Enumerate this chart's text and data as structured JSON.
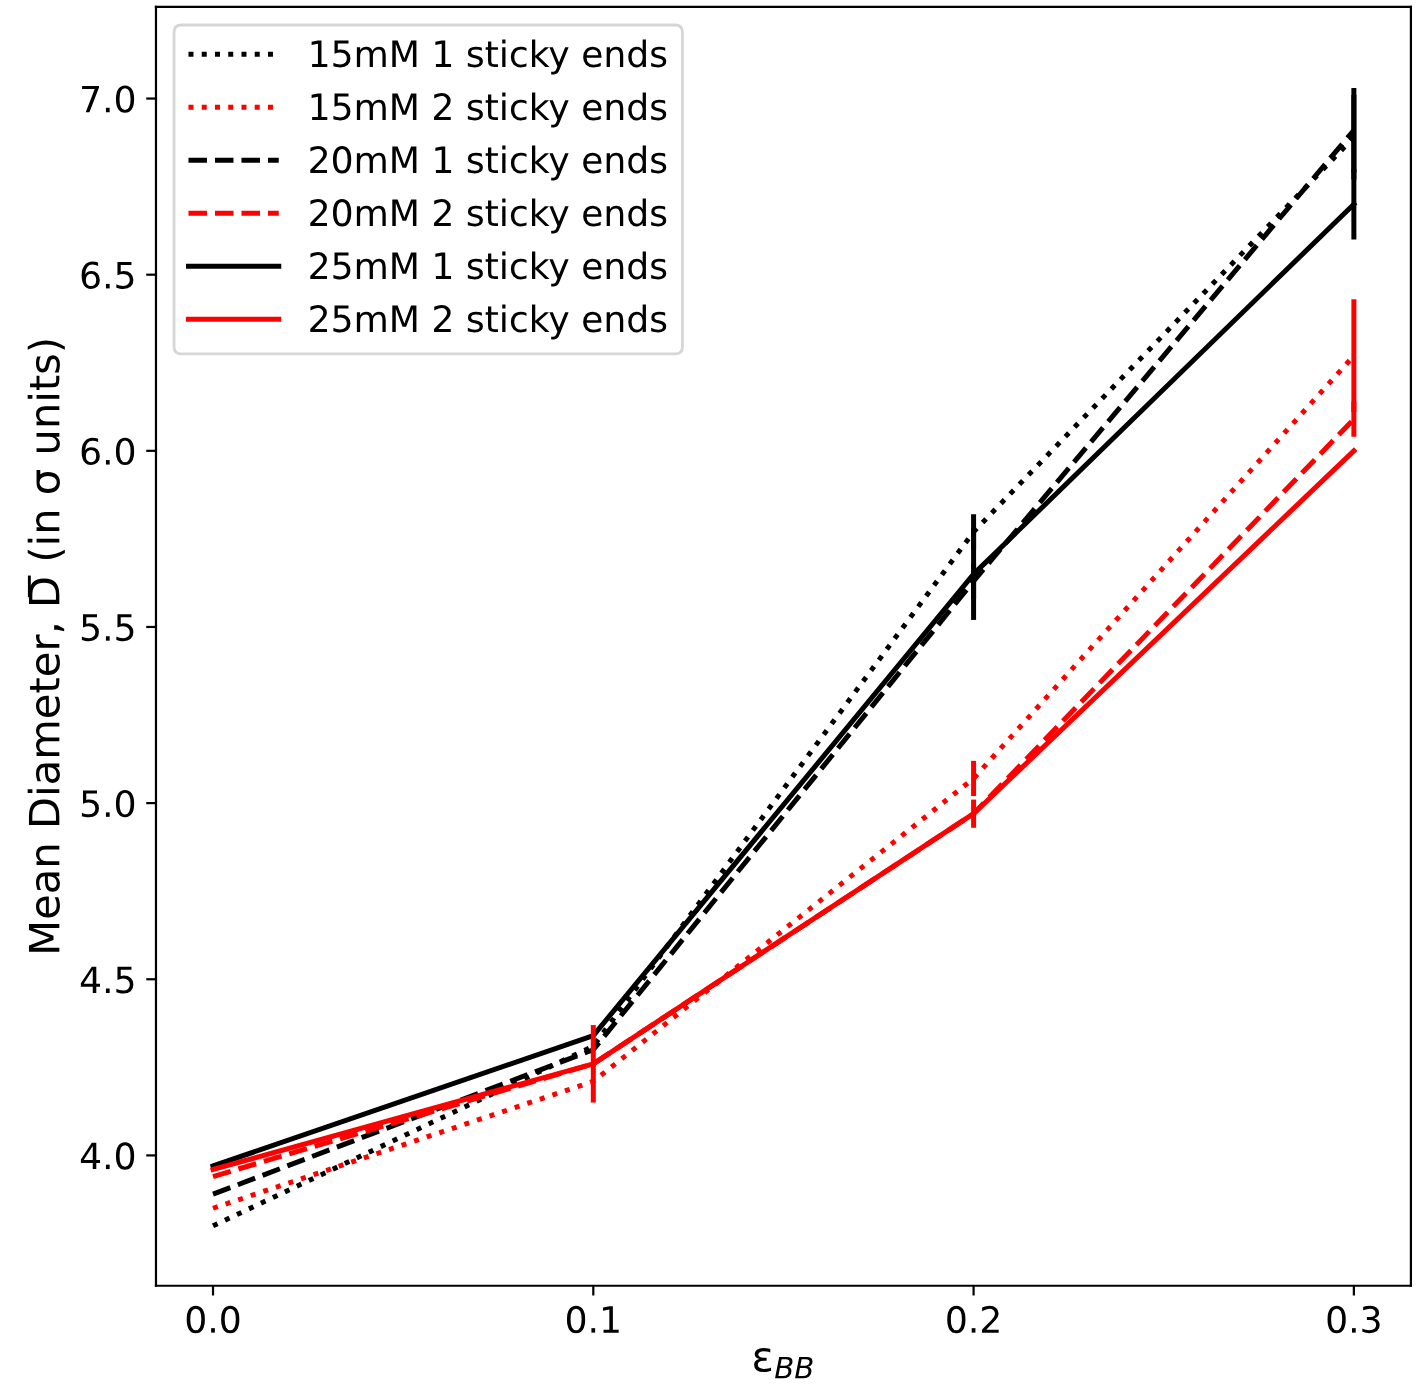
{
  "chart_data": {
    "type": "line",
    "xlabel": "ε$_{BB}$",
    "ylabel": "Mean Diameter, D̅ (in σ units)",
    "x": [
      0.0,
      0.1,
      0.2,
      0.3
    ],
    "series": [
      {
        "name": "15mM 1 sticky ends",
        "color": "#000000",
        "line_style": "dotted",
        "values": [
          3.8,
          4.31,
          5.77,
          6.89
        ],
        "errors": [
          null,
          null,
          0.05,
          0.12
        ]
      },
      {
        "name": "15mM 2 sticky ends",
        "color": "#ff0000",
        "line_style": "dotted",
        "values": [
          3.85,
          4.21,
          5.07,
          6.27
        ],
        "errors": [
          null,
          null,
          0.05,
          0.16
        ]
      },
      {
        "name": "20mM 1 sticky ends",
        "color": "#000000",
        "line_style": "dashed",
        "values": [
          3.89,
          4.3,
          5.63,
          6.91
        ],
        "errors": [
          null,
          null,
          0.05,
          0.12
        ]
      },
      {
        "name": "20mM 2 sticky ends",
        "color": "#ff0000",
        "line_style": "dashed",
        "values": [
          3.94,
          4.26,
          4.97,
          6.09
        ],
        "errors": [
          null,
          null,
          null,
          0.05
        ]
      },
      {
        "name": "25mM 1 sticky ends",
        "color": "#000000",
        "line_style": "solid",
        "values": [
          3.97,
          4.34,
          5.65,
          6.7
        ],
        "errors": [
          null,
          null,
          0.13,
          0.1
        ]
      },
      {
        "name": "25mM 2 sticky ends",
        "color": "#ff0000",
        "line_style": "solid",
        "values": [
          3.96,
          4.26,
          4.97,
          6.0
        ],
        "errors": [
          null,
          0.11,
          0.04,
          null
        ]
      }
    ],
    "xlim": [
      -0.015,
      0.315
    ],
    "xticks": [
      {
        "value": 0.0,
        "label": "0.0"
      },
      {
        "value": 0.1,
        "label": "0.1"
      },
      {
        "value": 0.2,
        "label": "0.2"
      },
      {
        "value": 0.3,
        "label": "0.3"
      }
    ],
    "ylim": [
      3.63,
      7.26
    ],
    "yticks": [
      {
        "value": 4.0,
        "label": "4.0"
      },
      {
        "value": 4.5,
        "label": "4.5"
      },
      {
        "value": 5.0,
        "label": "5.0"
      },
      {
        "value": 5.5,
        "label": "5.5"
      },
      {
        "value": 6.0,
        "label": "6.0"
      },
      {
        "value": 6.5,
        "label": "6.5"
      },
      {
        "value": 7.0,
        "label": "7.0"
      }
    ],
    "grid": false,
    "legend": "top left"
  }
}
